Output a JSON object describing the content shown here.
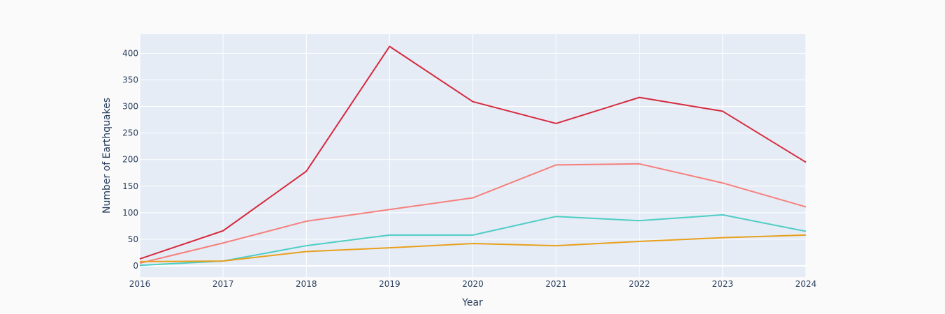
{
  "chart_data": {
    "type": "line",
    "title": "",
    "xlabel": "Year",
    "ylabel": "Number of Earthquakes",
    "x": [
      2016,
      2017,
      2018,
      2019,
      2020,
      2021,
      2022,
      2023,
      2024
    ],
    "xlim": [
      2016,
      2024
    ],
    "ylim": [
      -21,
      436
    ],
    "x_ticks": [
      "2016",
      "2017",
      "2018",
      "2019",
      "2020",
      "2021",
      "2022",
      "2023",
      "2024"
    ],
    "y_ticks": [
      0,
      50,
      100,
      150,
      200,
      250,
      300,
      350,
      400
    ],
    "grid": true,
    "background_color": "#e5ecf6",
    "series": [
      {
        "color": "#d62a3d",
        "values": [
          13,
          66,
          178,
          413,
          309,
          268,
          317,
          291,
          195
        ]
      },
      {
        "color": "#f67f7c",
        "values": [
          5,
          43,
          84,
          106,
          128,
          190,
          192,
          156,
          111
        ]
      },
      {
        "color": "#4ecdc4",
        "values": [
          1,
          9,
          38,
          58,
          58,
          93,
          85,
          96,
          65
        ]
      },
      {
        "color": "#e8a01c",
        "values": [
          8,
          9,
          27,
          34,
          42,
          38,
          46,
          53,
          58
        ]
      }
    ]
  }
}
